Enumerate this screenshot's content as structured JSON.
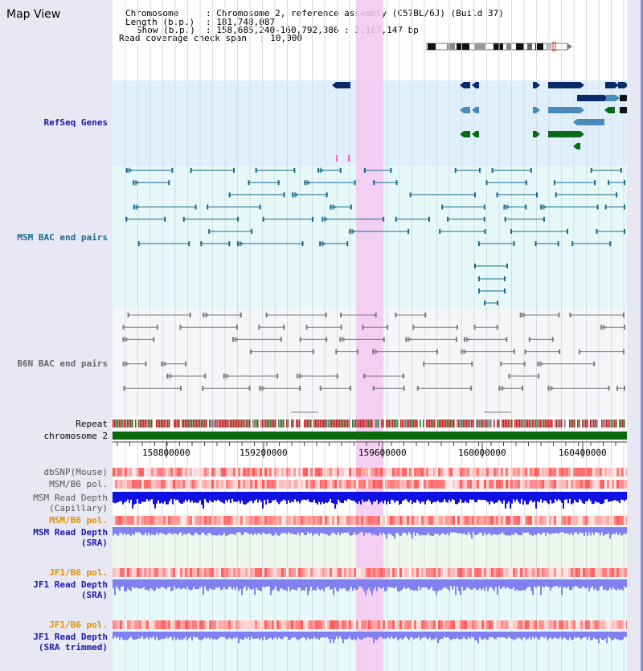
{
  "title": "Map View",
  "info": {
    "chromosome_label": "Chromosome",
    "chromosome_value": ": Chromosome 2, reference assembly (C57BL/6J) (Build 37)",
    "length_label": "Length (b.p.)",
    "length_value": ": 181,748,087",
    "show_label": "Show (b.p.)",
    "show_value": ": 158,685,240-160,792,386 : 2,107,147 bp",
    "coverage_label": "Read coverage check span",
    "coverage_value": ": 10,000"
  },
  "tracks": {
    "refseq": "RefSeq Genes",
    "msm_bac": "MSM BAC end pairs",
    "b6n_bac": "B6N BAC end pairs",
    "repeat": "Repeat",
    "chromosome": "chromosome 2",
    "dbsnp": "dbSNP(Mouse)",
    "msm_b6_pol_1": "MSM/B6 pol.",
    "msm_depth_cap_1": "MSM Read Depth",
    "msm_depth_cap_2": "(Capillary)",
    "msm_b6_pol_2": "MSM/B6 pol.",
    "msm_depth_sra_1": "MSM Read Depth",
    "msm_depth_sra_2": "(SRA)",
    "jf1_b6_pol_1": "JF1/B6 pol.",
    "jf1_depth_sra_1": "JF1 Read Depth",
    "jf1_depth_sra_2": "(SRA)",
    "jf1_b6_pol_2": "JF1/B6 pol.",
    "jf1_depth_trim_1": "JF1 Read Depth",
    "jf1_depth_trim_2": "(SRA trimmed)"
  },
  "axis": {
    "ticks": [
      "158800000",
      "159200000",
      "159600000",
      "160000000",
      "160400000"
    ]
  },
  "colors": {
    "refseq_dark": "#0a2a6a",
    "refseq_mid": "#4a8ab8",
    "refseq_green": "#0a6a1a",
    "msm_bac": "#1a6a8a",
    "b6n_bac": "#7a7a7a",
    "highlight": "#f4c8f0",
    "chromosome_bar": "#0a6a0a",
    "depth_capillary": "#1010e0",
    "depth_sra": "#8080f0",
    "label_blue": "#1a1aaa",
    "label_orange": "#e09000"
  }
}
